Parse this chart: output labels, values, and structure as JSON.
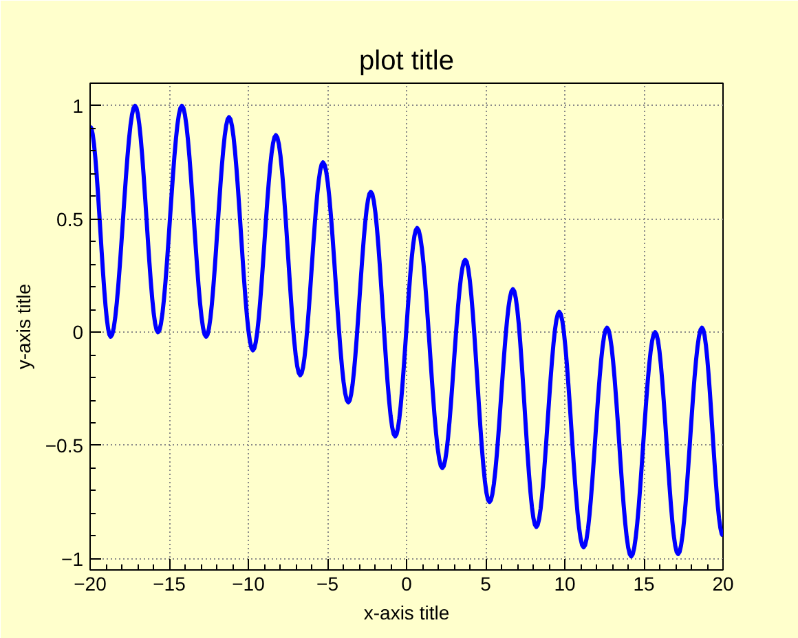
{
  "chart_data": {
    "type": "line",
    "title": "plot title",
    "xlabel": "x-axis title",
    "ylabel": "y-axis title",
    "x": [
      -20,
      -18.7,
      -17.16,
      -15.71,
      -14.2,
      -12.67,
      -11.22,
      -9.71,
      -8.26,
      -6.72,
      -5.28,
      -3.68,
      -2.26,
      -0.72,
      0.67,
      2.26,
      3.71,
      5.24,
      6.72,
      8.2,
      9.65,
      11.19,
      12.67,
      14.2,
      15.71,
      17.16,
      18.67,
      20
    ],
    "series": [
      {
        "color": "#0000ff",
        "values": [
          0.91,
          -0.02,
          1.0,
          0.0,
          1.0,
          -0.02,
          0.95,
          -0.08,
          0.87,
          -0.19,
          0.75,
          -0.31,
          0.62,
          -0.46,
          0.46,
          -0.6,
          0.32,
          -0.75,
          0.19,
          -0.86,
          0.09,
          -0.95,
          0.02,
          -0.99,
          0.0,
          -0.98,
          0.02,
          -0.9
        ]
      }
    ],
    "xlim": [
      -20,
      20
    ],
    "ylim": [
      -1.05,
      1.1
    ],
    "xticks": [
      -20,
      -15,
      -10,
      -5,
      0,
      5,
      10,
      15,
      20
    ],
    "yticks": [
      -1,
      -0.5,
      0,
      0.5,
      1
    ],
    "grid": true,
    "line_style": "solid",
    "marker": "none"
  }
}
